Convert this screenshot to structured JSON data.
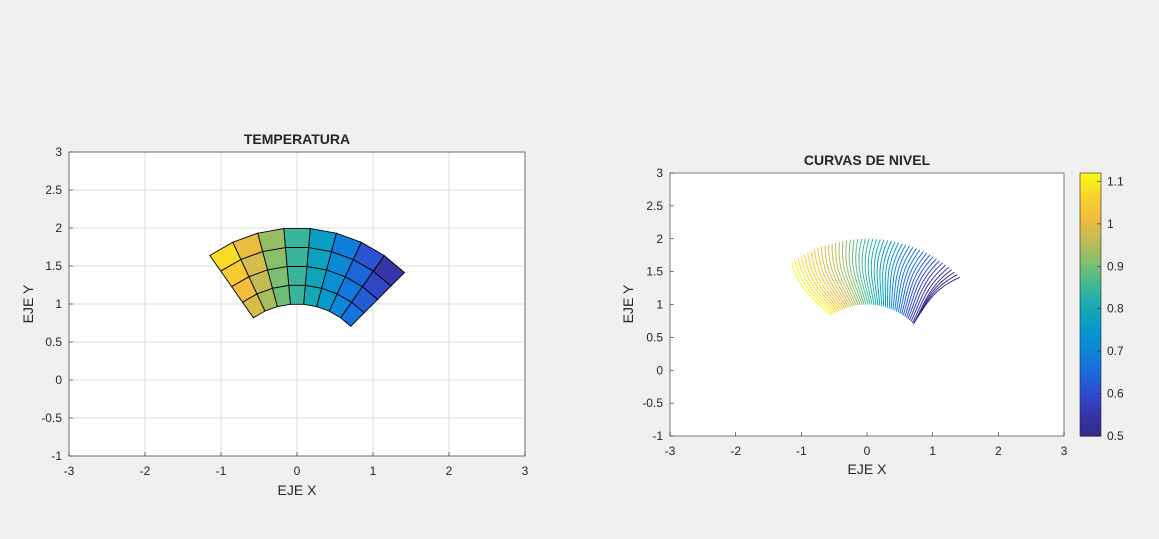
{
  "figure": {
    "background": "#f0f0f0"
  },
  "chart_data": [
    {
      "type": "heatmap",
      "title": "TEMPERATURA",
      "xlabel": "EJE X",
      "ylabel": "EJE Y",
      "xlim": [
        -3,
        3
      ],
      "ylim": [
        -1,
        3
      ],
      "xticks": [
        "-3",
        "-2",
        "-1",
        "0",
        "1",
        "2",
        "3"
      ],
      "yticks": [
        "-1",
        "-0.5",
        "0",
        "0.5",
        "1",
        "1.5",
        "2",
        "2.5",
        "3"
      ],
      "grid": true,
      "colormap": "parula",
      "domain": {
        "shape": "annular sector",
        "r_inner": 1.0,
        "r_outer": 2.0,
        "theta_deg": [
          45,
          125
        ]
      },
      "mesh": {
        "radial_cells": 4,
        "angular_cells": 8
      },
      "value_range": [
        0.5,
        1.12
      ]
    },
    {
      "type": "line",
      "title": "CURVAS DE NIVEL",
      "xlabel": "EJE X",
      "ylabel": "EJE Y",
      "xlim": [
        -3,
        3
      ],
      "ylim": [
        -1,
        3
      ],
      "xticks": [
        "-3",
        "-2",
        "-1",
        "0",
        "1",
        "2",
        "3"
      ],
      "yticks": [
        "-1",
        "-0.5",
        "0",
        "0.5",
        "1",
        "1.5",
        "2",
        "2.5",
        "3"
      ],
      "grid": false,
      "colormap": "parula",
      "domain": {
        "shape": "annular sector",
        "r_inner": 1.0,
        "r_outer": 2.0,
        "theta_deg": [
          45,
          125
        ]
      },
      "contour_levels": 50,
      "value_range": [
        0.5,
        1.12
      ],
      "colorbar": {
        "position": "right",
        "range": [
          0.5,
          1.12
        ],
        "ticks": [
          "0.5",
          "0.6",
          "0.7",
          "0.8",
          "0.9",
          "1",
          "1.1"
        ]
      }
    }
  ]
}
